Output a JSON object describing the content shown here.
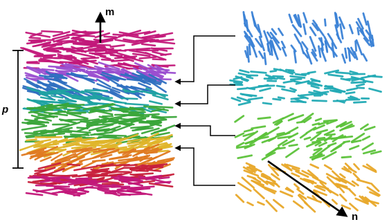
{
  "labels": {
    "director_m": "m",
    "pitch": "p",
    "director_n": "n"
  },
  "colors": {
    "magenta": "#c2187a",
    "purple": "#9b4fd0",
    "blue": "#2f6fc0",
    "teal": "#1fa3a3",
    "green": "#3aa63a",
    "yellow": "#e0b52a",
    "orange": "#e07a20",
    "red": "#c8203c",
    "panel_blue": "#3b82d6",
    "panel_teal": "#22aab5",
    "panel_green": "#5cc23a",
    "panel_gold": "#e8a82a",
    "line": "#000000"
  },
  "icons": {
    "director_m_arrow": "up-arrow-icon",
    "director_n_arrow": "diagonal-arrow-icon",
    "pitch_bracket": "bracket-icon",
    "connector_arrows": "left-arrow-icon"
  }
}
